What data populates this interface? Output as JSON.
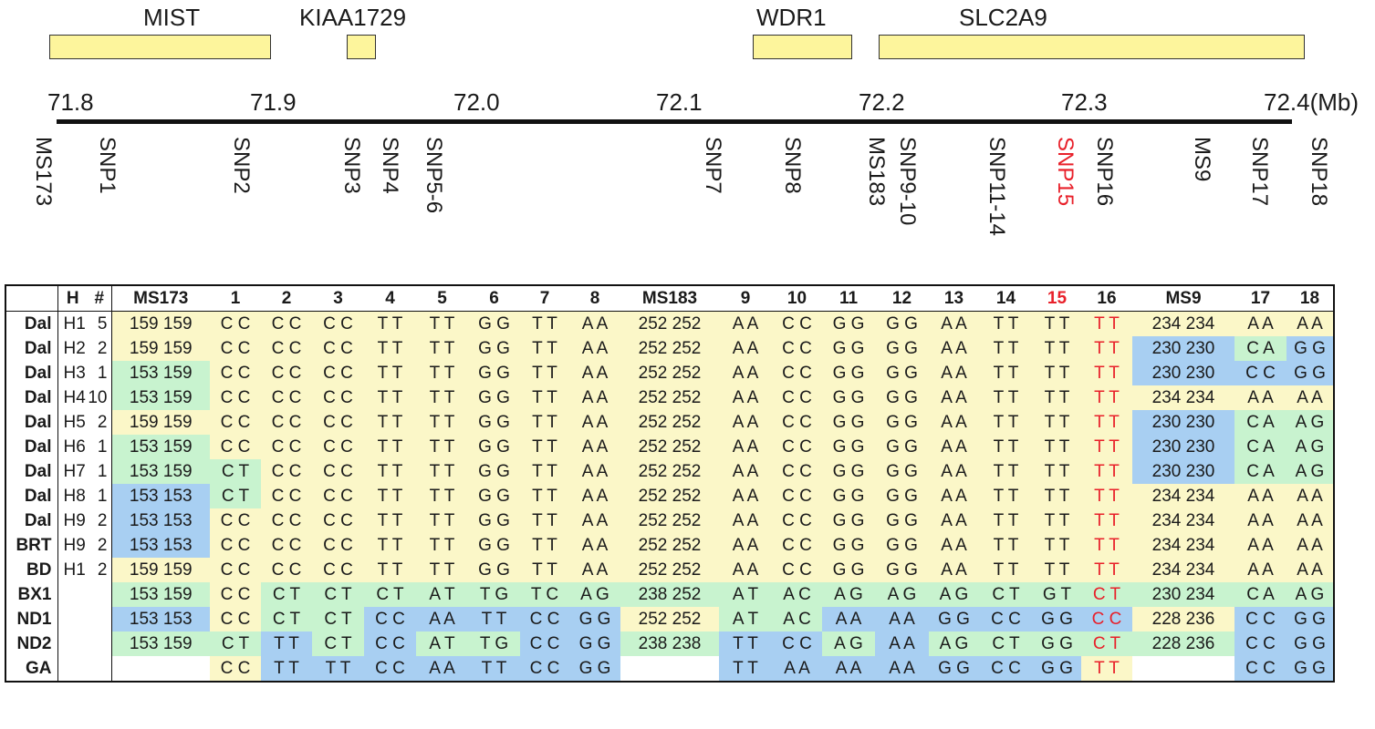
{
  "genes": [
    {
      "name": "MIST"
    },
    {
      "name": "KIAA1729"
    },
    {
      "name": "WDR1"
    },
    {
      "name": "SLC2A9"
    }
  ],
  "axis": {
    "ticks": [
      "71.8",
      "71.9",
      "72.0",
      "72.1",
      "72.2",
      "72.3",
      "72.4(Mb)"
    ]
  },
  "markers": [
    {
      "label": "MS173"
    },
    {
      "label": "SNP1"
    },
    {
      "label": "SNP2"
    },
    {
      "label": "SNP3"
    },
    {
      "label": "SNP4"
    },
    {
      "label": "SNP5-6"
    },
    {
      "label": "SNP7"
    },
    {
      "label": "SNP8"
    },
    {
      "label": "MS183"
    },
    {
      "label": "SNP9-10"
    },
    {
      "label": "SNP11-14"
    },
    {
      "label": "SNP15"
    },
    {
      "label": "SNP16"
    },
    {
      "label": "MS9"
    },
    {
      "label": "SNP17"
    },
    {
      "label": "SNP18"
    }
  ],
  "colors": {
    "yellow": "#fbf7c8",
    "green": "#c8f3cf",
    "blue": "#a8cff2",
    "highlight": "#e8202a"
  },
  "table": {
    "header": [
      "",
      "H",
      "#",
      "MS173",
      "1",
      "2",
      "3",
      "4",
      "5",
      "6",
      "7",
      "8",
      "MS183",
      "9",
      "10",
      "11",
      "12",
      "13",
      "14",
      "15",
      "16",
      "MS9",
      "17",
      "18"
    ],
    "rows": [
      {
        "pop": "Dal",
        "h": "H1",
        "n": "5",
        "g": [
          "159 159",
          "C C",
          "C C",
          "C C",
          "T T",
          "T T",
          "G G",
          "T T",
          "A A",
          "252 252",
          "A A",
          "C C",
          "G G",
          "G G",
          "A A",
          "T T",
          "T T",
          "T T",
          "234 234",
          "A A",
          "A A"
        ],
        "c": "yyyyyyyyyyyyyyyyyyyyy"
      },
      {
        "pop": "Dal",
        "h": "H2",
        "n": "2",
        "g": [
          "159 159",
          "C C",
          "C C",
          "C C",
          "T T",
          "T T",
          "G G",
          "T T",
          "A A",
          "252 252",
          "A A",
          "C C",
          "G G",
          "G G",
          "A A",
          "T T",
          "T T",
          "T T",
          "230 230",
          "C A",
          "G G"
        ],
        "c": "yyyyyyyyyyyyyyyyyybgb"
      },
      {
        "pop": "Dal",
        "h": "H3",
        "n": "1",
        "g": [
          "153 159",
          "C C",
          "C C",
          "C C",
          "T T",
          "T T",
          "G G",
          "T T",
          "A A",
          "252 252",
          "A A",
          "C C",
          "G G",
          "G G",
          "A A",
          "T T",
          "T T",
          "T T",
          "230 230",
          "C C",
          "G G"
        ],
        "c": "gyyyyyyyyyyyyyyyyybbb"
      },
      {
        "pop": "Dal",
        "h": "H4",
        "n": "10",
        "g": [
          "153 159",
          "C C",
          "C C",
          "C C",
          "T T",
          "T T",
          "G G",
          "T T",
          "A A",
          "252 252",
          "A A",
          "C C",
          "G G",
          "G G",
          "A A",
          "T T",
          "T T",
          "T T",
          "234 234",
          "A A",
          "A A"
        ],
        "c": "gyyyyyyyyyyyyyyyyyyyy"
      },
      {
        "pop": "Dal",
        "h": "H5",
        "n": "2",
        "g": [
          "159 159",
          "C C",
          "C C",
          "C C",
          "T T",
          "T T",
          "G G",
          "T T",
          "A A",
          "252 252",
          "A A",
          "C C",
          "G G",
          "G G",
          "A A",
          "T T",
          "T T",
          "T T",
          "230 230",
          "C A",
          "A G"
        ],
        "c": "yyyyyyyyyyyyyyyyyybgg"
      },
      {
        "pop": "Dal",
        "h": "H6",
        "n": "1",
        "g": [
          "153 159",
          "C C",
          "C C",
          "C C",
          "T T",
          "T T",
          "G G",
          "T T",
          "A A",
          "252 252",
          "A A",
          "C C",
          "G G",
          "G G",
          "A A",
          "T T",
          "T T",
          "T T",
          "230 230",
          "C A",
          "A G"
        ],
        "c": "gyyyyyyyyyyyyyyyyybgg"
      },
      {
        "pop": "Dal",
        "h": "H7",
        "n": "1",
        "g": [
          "153 159",
          "C T",
          "C C",
          "C C",
          "T T",
          "T T",
          "G G",
          "T T",
          "A A",
          "252 252",
          "A A",
          "C C",
          "G G",
          "G G",
          "A A",
          "T T",
          "T T",
          "T T",
          "230 230",
          "C A",
          "A G"
        ],
        "c": "ggyyyyyyyyyyyyyyyybgg"
      },
      {
        "pop": "Dal",
        "h": "H8",
        "n": "1",
        "g": [
          "153 153",
          "C T",
          "C C",
          "C C",
          "T T",
          "T T",
          "G G",
          "T T",
          "A A",
          "252 252",
          "A A",
          "C C",
          "G G",
          "G G",
          "A A",
          "T T",
          "T T",
          "T T",
          "234 234",
          "A A",
          "A A"
        ],
        "c": "bgyyyyyyyyyyyyyyyyyyy"
      },
      {
        "pop": "Dal",
        "h": "H9",
        "n": "2",
        "g": [
          "153 153",
          "C C",
          "C C",
          "C C",
          "T T",
          "T T",
          "G G",
          "T T",
          "A A",
          "252 252",
          "A A",
          "C C",
          "G G",
          "G G",
          "A A",
          "T T",
          "T T",
          "T T",
          "234 234",
          "A A",
          "A A"
        ],
        "c": "byyyyyyyyyyyyyyyyyyyy"
      },
      {
        "pop": "BRT",
        "h": "H9",
        "n": "2",
        "g": [
          "153 153",
          "C C",
          "C C",
          "C C",
          "T T",
          "T T",
          "G G",
          "T T",
          "A A",
          "252 252",
          "A A",
          "C C",
          "G G",
          "G G",
          "A A",
          "T T",
          "T T",
          "T T",
          "234 234",
          "A A",
          "A A"
        ],
        "c": "byyyyyyyyyyyyyyyyyyyy"
      },
      {
        "pop": "BD",
        "h": "H1",
        "n": "2",
        "g": [
          "159 159",
          "C C",
          "C C",
          "C C",
          "T T",
          "T T",
          "G G",
          "T T",
          "A A",
          "252 252",
          "A A",
          "C C",
          "G G",
          "G G",
          "A A",
          "T T",
          "T T",
          "T T",
          "234 234",
          "A A",
          "A A"
        ],
        "c": "yyyyyyyyyyyyyyyyyyyyy"
      },
      {
        "pop": "BX1",
        "h": "",
        "n": "",
        "g": [
          "153 159",
          "C C",
          "C T",
          "C T",
          "C T",
          "A T",
          "T G",
          "T C",
          "A G",
          "238 252",
          "A T",
          "A C",
          "A G",
          "A G",
          "A G",
          "C T",
          "G T",
          "C T",
          "230 234",
          "C A",
          "A G"
        ],
        "c": "gyggggggggggggggggggg"
      },
      {
        "pop": "ND1",
        "h": "",
        "n": "",
        "g": [
          "153 153",
          "C C",
          "C T",
          "C T",
          "C C",
          "A A",
          "T T",
          "C C",
          "G G",
          "252 252",
          "A T",
          "A C",
          "A A",
          "A A",
          "G G",
          "C C",
          "G G",
          "C C",
          "228 236",
          "C C",
          "G G"
        ],
        "c": "byggbbbbbyggbbbbbbybb"
      },
      {
        "pop": "ND2",
        "h": "",
        "n": "",
        "g": [
          "153 159",
          "C T",
          "T T",
          "C T",
          "C C",
          "A T",
          "T G",
          "C C",
          "G G",
          "238 238",
          "T T",
          "C C",
          "A G",
          "A A",
          "A G",
          "C T",
          "G G",
          "C T",
          "228 236",
          "C C",
          "G G"
        ],
        "c": "ggbgbggbbgbbgbgggggbb"
      },
      {
        "pop": "GA",
        "h": "",
        "n": "",
        "g": [
          "",
          "C C",
          "T T",
          "T T",
          "C C",
          "A A",
          "T T",
          "C C",
          "G G",
          "",
          "T T",
          "A A",
          "A A",
          "A A",
          "G G",
          "C C",
          "G G",
          "T T",
          "",
          "C C",
          "G G"
        ],
        "c": "wybbbbbbbwbbbbbbbywbb"
      }
    ]
  }
}
